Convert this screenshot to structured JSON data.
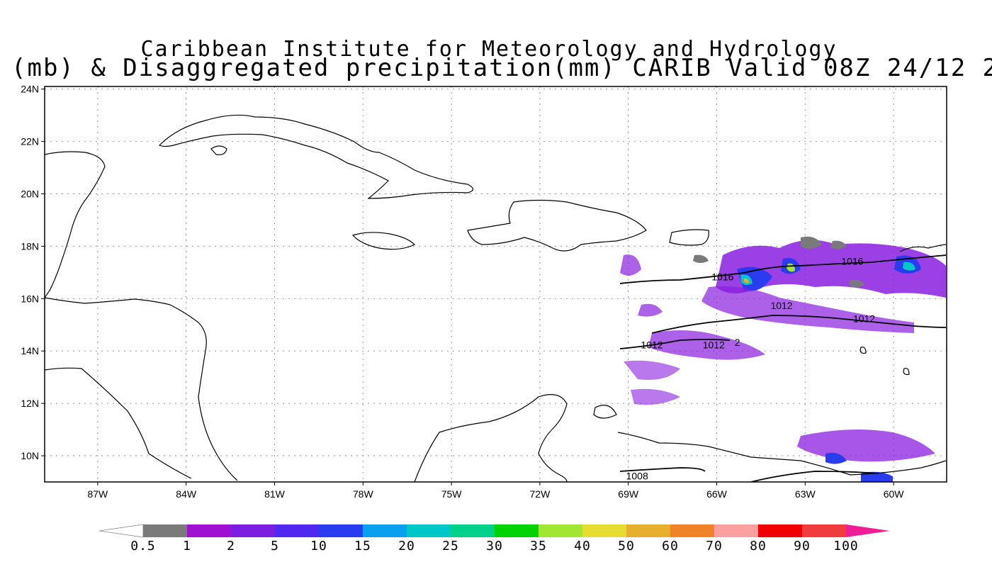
{
  "title": {
    "line1": "Caribbean Institute for Meteorology and Hydrology",
    "line2": "(mb) & Disaggregated precipitation(mm) CARIB Valid 08Z 24/12 2"
  },
  "axes": {
    "lat_labels": [
      "24N",
      "22N",
      "20N",
      "18N",
      "16N",
      "14N",
      "12N",
      "10N"
    ],
    "lat_values": [
      24,
      22,
      20,
      18,
      16,
      14,
      12,
      10
    ],
    "lon_labels": [
      "87W",
      "84W",
      "81W",
      "78W",
      "75W",
      "72W",
      "69W",
      "66W",
      "63W",
      "60W"
    ],
    "lon_values": [
      -87,
      -84,
      -81,
      -78,
      -75,
      -72,
      -69,
      -66,
      -63,
      -60
    ],
    "lon_range": [
      -88.8,
      -58.2
    ],
    "lat_range": [
      9,
      24.1
    ]
  },
  "isobars": [
    {
      "label": "1016",
      "lon": -65.8,
      "lat": 16.7
    },
    {
      "label": "1016",
      "lon": -61.4,
      "lat": 17.3
    },
    {
      "label": "1012",
      "lon": -63.8,
      "lat": 15.6
    },
    {
      "label": "1012",
      "lon": -61.0,
      "lat": 15.1
    },
    {
      "label": "1012",
      "lon": -68.2,
      "lat": 14.1
    },
    {
      "label": "1012",
      "lon": -66.1,
      "lat": 14.1
    },
    {
      "label": "2",
      "lon": -65.3,
      "lat": 14.2
    },
    {
      "label": "1008",
      "lon": -68.7,
      "lat": 9.1
    }
  ],
  "colorbar": {
    "labels": [
      "0.5",
      "1",
      "2",
      "5",
      "10",
      "15",
      "20",
      "25",
      "30",
      "35",
      "40",
      "50",
      "60",
      "70",
      "80",
      "90",
      "100"
    ],
    "colors": [
      "#ffffff",
      "#7a7a7a",
      "#a010d0",
      "#7b1ee0",
      "#5028f0",
      "#2a3cf0",
      "#0aa0f0",
      "#00c8c8",
      "#00d28c",
      "#00d200",
      "#a0e632",
      "#e6dc32",
      "#e6af2d",
      "#f08228",
      "#faa0a0",
      "#f00000",
      "#f03c3c",
      "#f01e96"
    ]
  }
}
